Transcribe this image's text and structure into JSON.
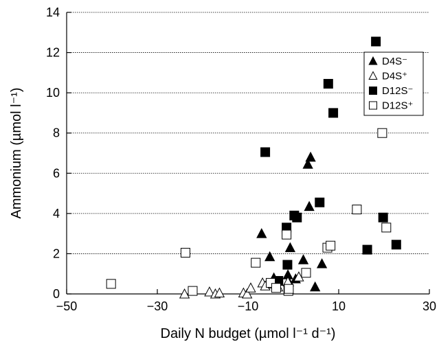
{
  "chart_data": {
    "type": "scatter",
    "xlabel": "Daily  N budget (µmol l⁻¹ d⁻¹)",
    "ylabel": "Ammonium (µmol l⁻¹)",
    "xlim": [
      -50,
      30
    ],
    "ylim": [
      0,
      14
    ],
    "xticks": [
      -50,
      -30,
      -10,
      10,
      30
    ],
    "xtick_labels": [
      "−50",
      "−30",
      "−10",
      "10",
      "30"
    ],
    "yticks": [
      0,
      2,
      4,
      6,
      8,
      10,
      12,
      14
    ],
    "ytick_labels": [
      "0",
      "2",
      "4",
      "6",
      "8",
      "10",
      "12",
      "14"
    ],
    "grid": "horizontal dotted",
    "legend_position": "top-right",
    "series": [
      {
        "name": "D4S⁻",
        "marker": "triangle",
        "fill": "filled",
        "color": "#000000",
        "points": [
          [
            -7,
            3.0
          ],
          [
            -5.2,
            1.85
          ],
          [
            -4.3,
            0.8
          ],
          [
            -1.2,
            0.95
          ],
          [
            -1.0,
            0.6
          ],
          [
            -0.7,
            2.3
          ],
          [
            0.5,
            0.75
          ],
          [
            2.2,
            1.7
          ],
          [
            3.2,
            6.45
          ],
          [
            3.5,
            4.35
          ],
          [
            3.8,
            6.8
          ],
          [
            4.8,
            0.35
          ],
          [
            6.3,
            1.5
          ]
        ]
      },
      {
        "name": "D4S⁺",
        "marker": "triangle",
        "fill": "open",
        "color": "#000000",
        "points": [
          [
            -24,
            0.0
          ],
          [
            -18.5,
            0.1
          ],
          [
            -17.2,
            0.0
          ],
          [
            -16.3,
            0.05
          ],
          [
            -11,
            0.05
          ],
          [
            -10.2,
            0.0
          ],
          [
            -9.4,
            0.3
          ],
          [
            -6.8,
            0.55
          ],
          [
            -6.2,
            0.4
          ],
          [
            -4.5,
            0.5
          ],
          [
            -3.4,
            0.35
          ],
          [
            -1.2,
            0.6
          ],
          [
            1.2,
            0.85
          ]
        ]
      },
      {
        "name": "D12S⁻",
        "marker": "square",
        "fill": "filled",
        "color": "#000000",
        "points": [
          [
            -6.2,
            7.05
          ],
          [
            -3.3,
            0.65
          ],
          [
            -1.5,
            3.3
          ],
          [
            -1.3,
            1.45
          ],
          [
            0.2,
            3.9
          ],
          [
            0.8,
            3.8
          ],
          [
            5.8,
            4.55
          ],
          [
            7.7,
            10.45
          ],
          [
            8.8,
            9.0
          ],
          [
            16.3,
            2.2
          ],
          [
            18.2,
            12.55
          ],
          [
            19.8,
            3.8
          ],
          [
            22.7,
            2.45
          ]
        ]
      },
      {
        "name": "D12S⁺",
        "marker": "square",
        "fill": "open",
        "color": "#000000",
        "points": [
          [
            -40.2,
            0.5
          ],
          [
            -23.8,
            2.05
          ],
          [
            -22.2,
            0.15
          ],
          [
            -8.3,
            1.55
          ],
          [
            -5.0,
            0.55
          ],
          [
            -3.8,
            0.3
          ],
          [
            -1.5,
            2.95
          ],
          [
            -1.1,
            0.15
          ],
          [
            -1.0,
            0.25
          ],
          [
            2.8,
            1.05
          ],
          [
            7.5,
            2.3
          ],
          [
            8.2,
            2.4
          ],
          [
            14.0,
            4.2
          ],
          [
            19.6,
            8.0
          ],
          [
            20.5,
            3.3
          ]
        ]
      }
    ]
  }
}
